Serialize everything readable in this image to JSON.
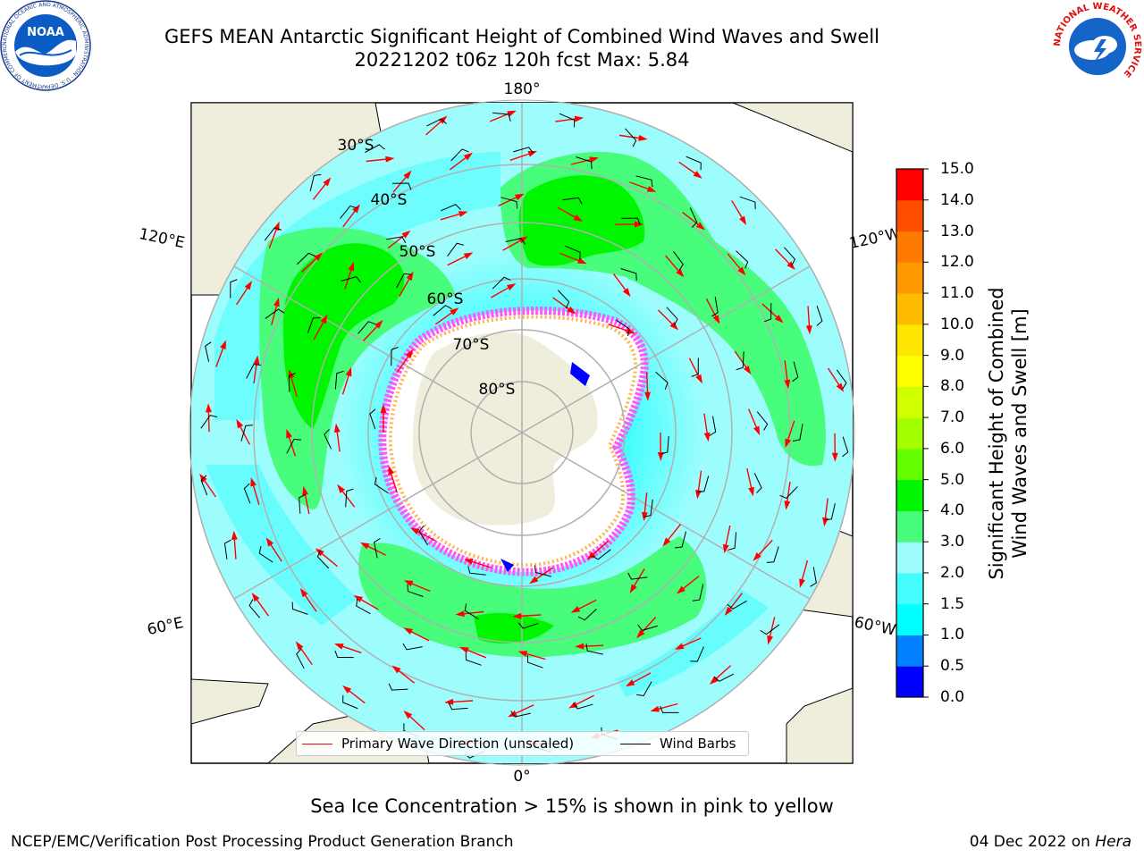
{
  "header": {
    "title_line1": "GEFS MEAN Antarctic Significant Height of Combined Wind Waves and Swell",
    "title_line2": "20221202 t06z 120h fcst   Max: 5.84"
  },
  "logos": {
    "noaa": "NOAA",
    "noaa_ring": "NATIONAL OCEANIC AND ATMOSPHERIC ADMINISTRATION · U.S. DEPARTMENT OF COMMERCE",
    "nws_ring": "NATIONAL WEATHER SERVICE"
  },
  "map": {
    "longitude_labels": [
      "180°",
      "120°E",
      "120°W",
      "60°E",
      "60°W",
      "0°"
    ],
    "latitude_labels": [
      "30°S",
      "40°S",
      "50°S",
      "60°S",
      "70°S",
      "80°S"
    ],
    "colors": {
      "land": "#efeddc",
      "ocean_low": "#9dfdfd",
      "ocean_mid": "#45fdfd",
      "ocean_high": "#48fc7c",
      "ocean_peak": "#00f500",
      "ice_pink": "#ff55ff",
      "ice_yellow": "#ffb347",
      "arrow": "#ff0000",
      "barb": "#000000",
      "grid": "#b0b0b0"
    }
  },
  "legend": {
    "wave_label": "Primary Wave Direction (unscaled)",
    "wind_label": "Wind Barbs"
  },
  "colorbar": {
    "ticks": [
      "15.0",
      "14.0",
      "13.0",
      "12.0",
      "11.0",
      "10.0",
      "9.0",
      "8.0",
      "7.0",
      "6.0",
      "5.0",
      "4.0",
      "3.0",
      "2.0",
      "1.5",
      "1.0",
      "0.5",
      "0.0"
    ],
    "colors_bottom_to_top": [
      "#0000ff",
      "#0080ff",
      "#00ffff",
      "#45fdfd",
      "#9dfdfd",
      "#48fc7c",
      "#00f500",
      "#66ff00",
      "#a6ff00",
      "#d0ff00",
      "#ffff00",
      "#ffe600",
      "#ffbb00",
      "#ff9900",
      "#ff7a00",
      "#ff4d00",
      "#ff0000"
    ],
    "label_line1": "Significant Height of Combined",
    "label_line2": "Wind Waves and Swell [m]"
  },
  "note": "Sea Ice Concentration > 15% is shown in pink to yellow",
  "footer": {
    "left": "NCEP/EMC/Verification Post Processing Product Generation Branch",
    "right_date": "04 Dec 2022 on ",
    "right_machine": "Hera"
  }
}
